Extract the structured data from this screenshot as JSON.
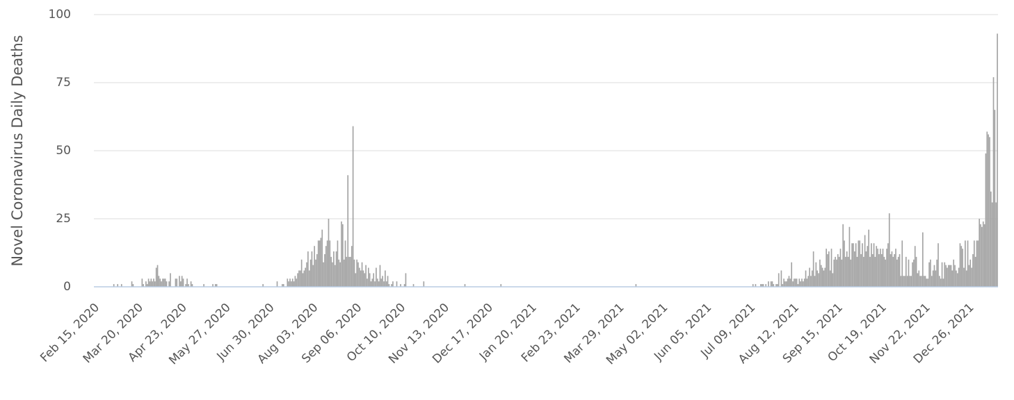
{
  "chart_data": {
    "type": "bar",
    "y_label": "Novel Coronavirus Daily Deaths",
    "color": "#a3a3a3",
    "ylim": [
      0,
      100
    ],
    "yticks": [
      0,
      25,
      50,
      75,
      100
    ],
    "grid": true,
    "categories": [
      "Feb 15, 2020",
      null,
      null,
      null,
      null,
      null,
      null,
      null,
      null,
      null,
      null,
      null,
      null,
      null,
      null,
      null,
      null,
      null,
      null,
      null,
      null,
      null,
      null,
      null,
      null,
      null,
      null,
      null,
      null,
      null,
      null,
      null,
      null,
      null,
      "Mar 20, 2020",
      null,
      null,
      null,
      null,
      null,
      null,
      null,
      null,
      null,
      null,
      null,
      null,
      null,
      null,
      null,
      null,
      null,
      null,
      null,
      null,
      null,
      null,
      null,
      null,
      null,
      null,
      null,
      null,
      null,
      null,
      null,
      null,
      null,
      "Apr 23, 2020",
      null,
      null,
      null,
      null,
      null,
      null,
      null,
      null,
      null,
      null,
      null,
      null,
      null,
      null,
      null,
      null,
      null,
      null,
      null,
      null,
      null,
      null,
      null,
      null,
      null,
      null,
      null,
      null,
      null,
      null,
      null,
      null,
      null,
      "May 27, 2020",
      null,
      null,
      null,
      null,
      null,
      null,
      null,
      null,
      null,
      null,
      null,
      null,
      null,
      null,
      null,
      null,
      null,
      null,
      null,
      null,
      null,
      null,
      null,
      null,
      null,
      null,
      null,
      null,
      null,
      null,
      null,
      null,
      null,
      "Jun 30, 2020",
      null,
      null,
      null,
      null,
      null,
      null,
      null,
      null,
      null,
      null,
      null,
      null,
      null,
      null,
      null,
      null,
      null,
      null,
      null,
      null,
      null,
      null,
      null,
      null,
      null,
      null,
      null,
      null,
      null,
      null,
      null,
      null,
      null,
      "Aug 03, 2020",
      null,
      null,
      null,
      null,
      null,
      null,
      null,
      null,
      null,
      null,
      null,
      null,
      null,
      null,
      null,
      null,
      null,
      null,
      null,
      null,
      null,
      null,
      null,
      null,
      null,
      null,
      null,
      null,
      null,
      null,
      null,
      null,
      null,
      "Sep 06, 2020",
      null,
      null,
      null,
      null,
      null,
      null,
      null,
      null,
      null,
      null,
      null,
      null,
      null,
      null,
      null,
      null,
      null,
      null,
      null,
      null,
      null,
      null,
      null,
      null,
      null,
      null,
      null,
      null,
      null,
      null,
      null,
      null,
      null,
      "Oct 10, 2020",
      null,
      null,
      null,
      null,
      null,
      null,
      null,
      null,
      null,
      null,
      null,
      null,
      null,
      null,
      null,
      null,
      null,
      null,
      null,
      null,
      null,
      null,
      null,
      null,
      null,
      null,
      null,
      null,
      null,
      null,
      null,
      null,
      null,
      "Nov 13, 2020",
      null,
      null,
      null,
      null,
      null,
      null,
      null,
      null,
      null,
      null,
      null,
      null,
      null,
      null,
      null,
      null,
      null,
      null,
      null,
      null,
      null,
      null,
      null,
      null,
      null,
      null,
      null,
      null,
      null,
      null,
      null,
      null,
      null,
      "Dec 17, 2020",
      null,
      null,
      null,
      null,
      null,
      null,
      null,
      null,
      null,
      null,
      null,
      null,
      null,
      null,
      null,
      null,
      null,
      null,
      null,
      null,
      null,
      null,
      null,
      null,
      null,
      null,
      null,
      null,
      null,
      null,
      null,
      null,
      null,
      "Jan 20, 2021",
      null,
      null,
      null,
      null,
      null,
      null,
      null,
      null,
      null,
      null,
      null,
      null,
      null,
      null,
      null,
      null,
      null,
      null,
      null,
      null,
      null,
      null,
      null,
      null,
      null,
      null,
      null,
      null,
      null,
      null,
      null,
      null,
      null,
      "Feb 23, 2021",
      null,
      null,
      null,
      null,
      null,
      null,
      null,
      null,
      null,
      null,
      null,
      null,
      null,
      null,
      null,
      null,
      null,
      null,
      null,
      null,
      null,
      null,
      null,
      null,
      null,
      null,
      null,
      null,
      null,
      null,
      null,
      null,
      null,
      "Mar 29, 2021",
      null,
      null,
      null,
      null,
      null,
      null,
      null,
      null,
      null,
      null,
      null,
      null,
      null,
      null,
      null,
      null,
      null,
      null,
      null,
      null,
      null,
      null,
      null,
      null,
      null,
      null,
      null,
      null,
      null,
      null,
      null,
      null,
      null,
      "May 02, 2021",
      null,
      null,
      null,
      null,
      null,
      null,
      null,
      null,
      null,
      null,
      null,
      null,
      null,
      null,
      null,
      null,
      null,
      null,
      null,
      null,
      null,
      null,
      null,
      null,
      null,
      null,
      null,
      null,
      null,
      null,
      null,
      null,
      null,
      "Jun 05, 2021",
      null,
      null,
      null,
      null,
      null,
      null,
      null,
      null,
      null,
      null,
      null,
      null,
      null,
      null,
      null,
      null,
      null,
      null,
      null,
      null,
      null,
      null,
      null,
      null,
      null,
      null,
      null,
      null,
      null,
      null,
      null,
      null,
      null,
      "Jul 09, 2021",
      null,
      null,
      null,
      null,
      null,
      null,
      null,
      null,
      null,
      null,
      null,
      null,
      null,
      null,
      null,
      null,
      null,
      null,
      null,
      null,
      null,
      null,
      null,
      null,
      null,
      null,
      null,
      null,
      null,
      null,
      null,
      null,
      null,
      "Aug 12, 2021",
      null,
      null,
      null,
      null,
      null,
      null,
      null,
      null,
      null,
      null,
      null,
      null,
      null,
      null,
      null,
      null,
      null,
      null,
      null,
      null,
      null,
      null,
      null,
      null,
      null,
      null,
      null,
      null,
      null,
      null,
      null,
      null,
      null,
      "Sep 15, 2021",
      null,
      null,
      null,
      null,
      null,
      null,
      null,
      null,
      null,
      null,
      null,
      null,
      null,
      null,
      null,
      null,
      null,
      null,
      null,
      null,
      null,
      null,
      null,
      null,
      null,
      null,
      null,
      null,
      null,
      null,
      null,
      null,
      null,
      "Oct 19, 2021",
      null,
      null,
      null,
      null,
      null,
      null,
      null,
      null,
      null,
      null,
      null,
      null,
      null,
      null,
      null,
      null,
      null,
      null,
      null,
      null,
      null,
      null,
      null,
      null,
      null,
      null,
      null,
      null,
      null,
      null,
      null,
      null,
      null,
      "Nov 22, 2021",
      null,
      null,
      null,
      null,
      null,
      null,
      null,
      null,
      null,
      null,
      null,
      null,
      null,
      null,
      null,
      null,
      null,
      null,
      null,
      null,
      null,
      null,
      null,
      null,
      null,
      null,
      null,
      null,
      null,
      null,
      null,
      null,
      null,
      "Dec 26, 2021",
      null,
      null,
      null,
      null,
      null,
      null,
      null,
      null,
      null,
      null,
      null,
      null,
      null,
      null,
      null,
      null,
      null,
      null,
      null,
      null,
      null,
      null
    ],
    "values": [
      0,
      0,
      0,
      0,
      0,
      0,
      0,
      0,
      0,
      0,
      0,
      0,
      0,
      0,
      0,
      1,
      0,
      0,
      1,
      0,
      0,
      1,
      0,
      0,
      0,
      0,
      0,
      0,
      0,
      2,
      1,
      0,
      0,
      0,
      0,
      0,
      0,
      3,
      1,
      0,
      2,
      1,
      3,
      2,
      3,
      2,
      3,
      2,
      7,
      8,
      4,
      3,
      2,
      3,
      3,
      3,
      2,
      0,
      2,
      5,
      0,
      0,
      0,
      3,
      3,
      0,
      4,
      2,
      4,
      3,
      0,
      1,
      3,
      1,
      0,
      2,
      1,
      0,
      0,
      0,
      0,
      0,
      0,
      0,
      0,
      1,
      0,
      0,
      0,
      0,
      0,
      0,
      1,
      0,
      1,
      1,
      0,
      0,
      0,
      0,
      0,
      0,
      0,
      0,
      0,
      0,
      0,
      0,
      0,
      0,
      0,
      0,
      0,
      0,
      0,
      0,
      0,
      0,
      0,
      0,
      0,
      0,
      0,
      0,
      0,
      0,
      0,
      0,
      0,
      0,
      0,
      1,
      0,
      0,
      0,
      0,
      0,
      0,
      0,
      0,
      0,
      0,
      2,
      0,
      0,
      0,
      1,
      1,
      0,
      0,
      3,
      2,
      3,
      2,
      3,
      2,
      4,
      3,
      5,
      6,
      6,
      10,
      5,
      6,
      7,
      9,
      13,
      6,
      10,
      13,
      8,
      15,
      10,
      12,
      17,
      17,
      18,
      21,
      9,
      12,
      15,
      17,
      25,
      17,
      11,
      9,
      13,
      8,
      13,
      17,
      10,
      9,
      24,
      23,
      10,
      17,
      11,
      41,
      11,
      11,
      15,
      59,
      10,
      5,
      10,
      9,
      7,
      6,
      9,
      6,
      5,
      8,
      3,
      7,
      5,
      2,
      3,
      5,
      2,
      7,
      3,
      2,
      8,
      3,
      4,
      2,
      6,
      2,
      4,
      1,
      0,
      1,
      2,
      0,
      0,
      2,
      0,
      0,
      1,
      0,
      0,
      1,
      5,
      0,
      0,
      0,
      0,
      0,
      1,
      0,
      0,
      0,
      0,
      0,
      0,
      0,
      2,
      0,
      0,
      0,
      0,
      0,
      0,
      0,
      0,
      0,
      0,
      0,
      0,
      0,
      0,
      0,
      0,
      0,
      0,
      0,
      0,
      0,
      0,
      0,
      0,
      0,
      0,
      0,
      0,
      0,
      0,
      0,
      1,
      0,
      0,
      0,
      0,
      0,
      0,
      0,
      0,
      0,
      0,
      0,
      0,
      0,
      0,
      0,
      0,
      0,
      0,
      0,
      0,
      0,
      0,
      0,
      0,
      0,
      0,
      0,
      1,
      0,
      0,
      0,
      0,
      0,
      0,
      0,
      0,
      0,
      0,
      0,
      0,
      0,
      0,
      0,
      0,
      0,
      0,
      0,
      0,
      0,
      0,
      0,
      0,
      0,
      0,
      0,
      0,
      0,
      0,
      0,
      0,
      0,
      0,
      0,
      0,
      0,
      0,
      0,
      0,
      0,
      0,
      0,
      0,
      0,
      0,
      0,
      0,
      0,
      0,
      0,
      0,
      0,
      0,
      0,
      0,
      0,
      0,
      0,
      0,
      0,
      0,
      0,
      0,
      0,
      0,
      0,
      0,
      0,
      0,
      0,
      0,
      0,
      0,
      0,
      0,
      0,
      0,
      0,
      0,
      0,
      0,
      0,
      0,
      0,
      0,
      0,
      0,
      0,
      0,
      0,
      0,
      0,
      0,
      0,
      0,
      0,
      0,
      0,
      0,
      0,
      0,
      0,
      0,
      1,
      0,
      0,
      0,
      0,
      0,
      0,
      0,
      0,
      0,
      0,
      0,
      0,
      0,
      0,
      0,
      0,
      0,
      0,
      0,
      0,
      0,
      0,
      0,
      0,
      0,
      0,
      0,
      0,
      0,
      0,
      0,
      0,
      0,
      0,
      0,
      0,
      0,
      0,
      0,
      0,
      0,
      0,
      0,
      0,
      0,
      0,
      0,
      0,
      0,
      0,
      0,
      0,
      0,
      0,
      0,
      0,
      0,
      0,
      0,
      0,
      0,
      0,
      0,
      0,
      0,
      0,
      0,
      0,
      0,
      0,
      0,
      0,
      0,
      0,
      0,
      0,
      0,
      0,
      0,
      0,
      0,
      0,
      0,
      0,
      0,
      0,
      0,
      0,
      0,
      0,
      1,
      0,
      1,
      0,
      0,
      0,
      1,
      1,
      1,
      0,
      1,
      0,
      2,
      0,
      2,
      2,
      1,
      0,
      1,
      1,
      5,
      0,
      6,
      1,
      3,
      2,
      2,
      3,
      4,
      3,
      9,
      2,
      3,
      3,
      3,
      1,
      3,
      2,
      3,
      2,
      3,
      6,
      3,
      4,
      7,
      4,
      6,
      13,
      4,
      9,
      6,
      5,
      10,
      8,
      7,
      6,
      7,
      14,
      12,
      13,
      6,
      14,
      5,
      10,
      11,
      10,
      12,
      11,
      14,
      10,
      23,
      17,
      11,
      13,
      11,
      22,
      10,
      16,
      16,
      13,
      16,
      11,
      17,
      17,
      12,
      16,
      11,
      19,
      13,
      15,
      21,
      11,
      16,
      12,
      16,
      11,
      15,
      14,
      12,
      14,
      12,
      14,
      11,
      10,
      14,
      16,
      27,
      12,
      13,
      11,
      12,
      14,
      10,
      11,
      12,
      4,
      17,
      4,
      4,
      11,
      4,
      10,
      4,
      4,
      9,
      10,
      15,
      11,
      5,
      6,
      4,
      4,
      20,
      4,
      4,
      3,
      3,
      9,
      10,
      4,
      6,
      8,
      6,
      10,
      16,
      4,
      3,
      9,
      3,
      9,
      8,
      7,
      8,
      8,
      8,
      6,
      10,
      8,
      6,
      5,
      7,
      16,
      15,
      14,
      7,
      17,
      6,
      17,
      8,
      10,
      7,
      12,
      17,
      11,
      17,
      17,
      25,
      23,
      22,
      24,
      23,
      49,
      57,
      56,
      55,
      35,
      31,
      77,
      65,
      31,
      93
    ]
  }
}
